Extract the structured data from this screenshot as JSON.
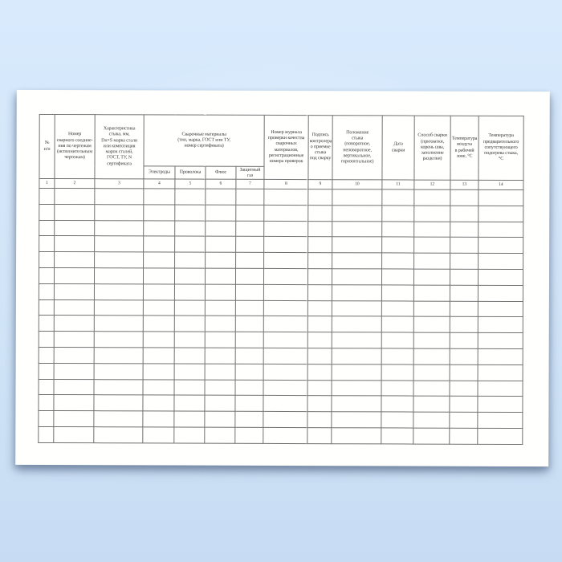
{
  "table": {
    "materials_group_label": "Сварочные материалы\n(тип, марка, ГОСТ или ТУ,\nномер сертификата)",
    "columns": [
      {
        "num": "1",
        "label": "№\nп/п"
      },
      {
        "num": "2",
        "label": "Номер\nсварного соедине-\nния по чертежам\n(исполнительным\nчертежам)"
      },
      {
        "num": "3",
        "label": "Характеристика\nстыка, мм,\nDн×S марка стали\nили композиция\nмарок сталей,\nГОСТ, ТУ, N\nсертификата"
      },
      {
        "num": "4",
        "label": "Электроды"
      },
      {
        "num": "5",
        "label": "Проволока"
      },
      {
        "num": "6",
        "label": "Флюс"
      },
      {
        "num": "7",
        "label": "Защитный\nгаз"
      },
      {
        "num": "8",
        "label": "Номер журнала\nпроверки качества\nсварочных\nматериалов,\nрегистрационные\nномера проверок"
      },
      {
        "num": "9",
        "label": "Подпись\nконтролера\nо приемке\nстыка\nпод сварку"
      },
      {
        "num": "10",
        "label": "Положение\nстыка\n(поворотное,\nнеповоротное,\nвертикальное,\nгоризонтальное)"
      },
      {
        "num": "11",
        "label": "Дата\nсварки"
      },
      {
        "num": "12",
        "label": "Способ сварки\n(прихватки,\nкорень шва,\nзаполнение\nразделки)"
      },
      {
        "num": "13",
        "label": "Температура\nвоздуха\nв рабочей\nзоне, °С"
      },
      {
        "num": "14",
        "label": "Температура\nпредварительного\nсопутствующего\nподогрева стыка,\n°С"
      }
    ],
    "empty_row_count": 16
  },
  "colors": {
    "background_top": "#d8eafc",
    "background_bottom": "#c7dcf3",
    "paper": "#fffffe",
    "table_border": "#717173",
    "text": "#39393b"
  }
}
